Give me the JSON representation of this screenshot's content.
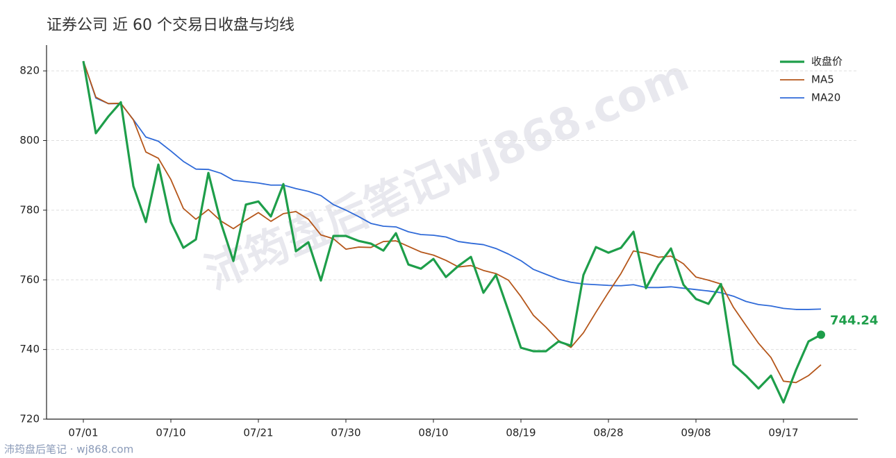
{
  "chart_data": {
    "type": "line",
    "title": "证券公司 近 60 个交易日收盘与均线",
    "categories": [
      "07/01",
      null,
      null,
      null,
      null,
      null,
      null,
      "07/10",
      null,
      null,
      null,
      null,
      null,
      null,
      "07/21",
      null,
      null,
      null,
      null,
      null,
      null,
      "07/30",
      null,
      null,
      null,
      null,
      null,
      null,
      "08/10",
      null,
      null,
      null,
      null,
      null,
      null,
      "08/19",
      null,
      null,
      null,
      null,
      null,
      null,
      "08/28",
      null,
      null,
      null,
      null,
      null,
      null,
      "09/08",
      null,
      null,
      null,
      null,
      null,
      null,
      "09/17",
      null,
      null,
      null
    ],
    "series": [
      {
        "name": "收盘价",
        "color": "#1e9e4a",
        "values": [
          822.8,
          802.1,
          806.9,
          811.0,
          786.9,
          776.6,
          793.1,
          776.6,
          769.2,
          771.6,
          790.7,
          776.4,
          765.4,
          781.6,
          782.5,
          778.2,
          787.5,
          768.2,
          770.8,
          759.8,
          772.6,
          772.6,
          771.2,
          770.4,
          768.4,
          773.4,
          764.4,
          763.2,
          766.0,
          760.8,
          764.0,
          766.6,
          756.3,
          761.4,
          751.1,
          740.5,
          739.5,
          739.5,
          742.3,
          741.1,
          761.4,
          769.4,
          767.8,
          769.2,
          773.8,
          757.6,
          764.2,
          769.0,
          758.6,
          754.5,
          753.1,
          758.8,
          735.7,
          732.5,
          728.8,
          732.5,
          724.8,
          734.1,
          742.3,
          744.24
        ]
      },
      {
        "name": "MA5",
        "color": "#b5561a",
        "values": [
          822.8,
          812.45,
          810.6,
          810.7,
          805.94,
          796.7,
          794.9,
          788.8,
          780.5,
          777.4,
          780.2,
          776.9,
          774.7,
          777.1,
          779.3,
          776.8,
          779.0,
          779.6,
          777.4,
          772.9,
          771.8,
          768.8,
          769.4,
          769.3,
          771.0,
          771.2,
          769.6,
          768.0,
          767.1,
          765.6,
          763.7,
          764.1,
          762.7,
          761.8,
          759.9,
          755.2,
          749.8,
          746.4,
          742.6,
          740.6,
          744.8,
          750.7,
          756.4,
          761.8,
          768.3,
          767.6,
          766.5,
          766.8,
          764.6,
          760.8,
          759.9,
          758.8,
          752.1,
          746.9,
          741.8,
          737.7,
          730.9,
          730.5,
          732.5,
          735.6
        ]
      },
      {
        "name": "MA20",
        "color": "#2f6ad8",
        "values": [
          822.8,
          812.2,
          810.6,
          810.6,
          806.0,
          801.0,
          799.8,
          797.0,
          794.0,
          791.8,
          791.7,
          790.6,
          788.6,
          788.2,
          787.8,
          787.2,
          787.2,
          786.2,
          785.4,
          784.2,
          781.6,
          780.0,
          778.2,
          776.2,
          775.4,
          775.2,
          773.8,
          773.0,
          772.8,
          772.3,
          771.0,
          770.5,
          770.1,
          769.0,
          767.4,
          765.5,
          763.0,
          761.6,
          760.2,
          759.3,
          758.8,
          758.6,
          758.4,
          758.3,
          758.6,
          757.8,
          757.8,
          758.0,
          757.6,
          757.2,
          756.8,
          756.3,
          755.3,
          753.8,
          752.9,
          752.5,
          751.8,
          751.5,
          751.5,
          751.6
        ]
      }
    ],
    "ylim": [
      720,
      827.4
    ],
    "yticks": [
      720,
      740,
      760,
      780,
      800,
      820
    ],
    "grid": true,
    "legend": "upper-right"
  },
  "watermark": "沛筠盘后笔记wj868.com",
  "footer": "沛筠盘后笔记 · wj868.com"
}
